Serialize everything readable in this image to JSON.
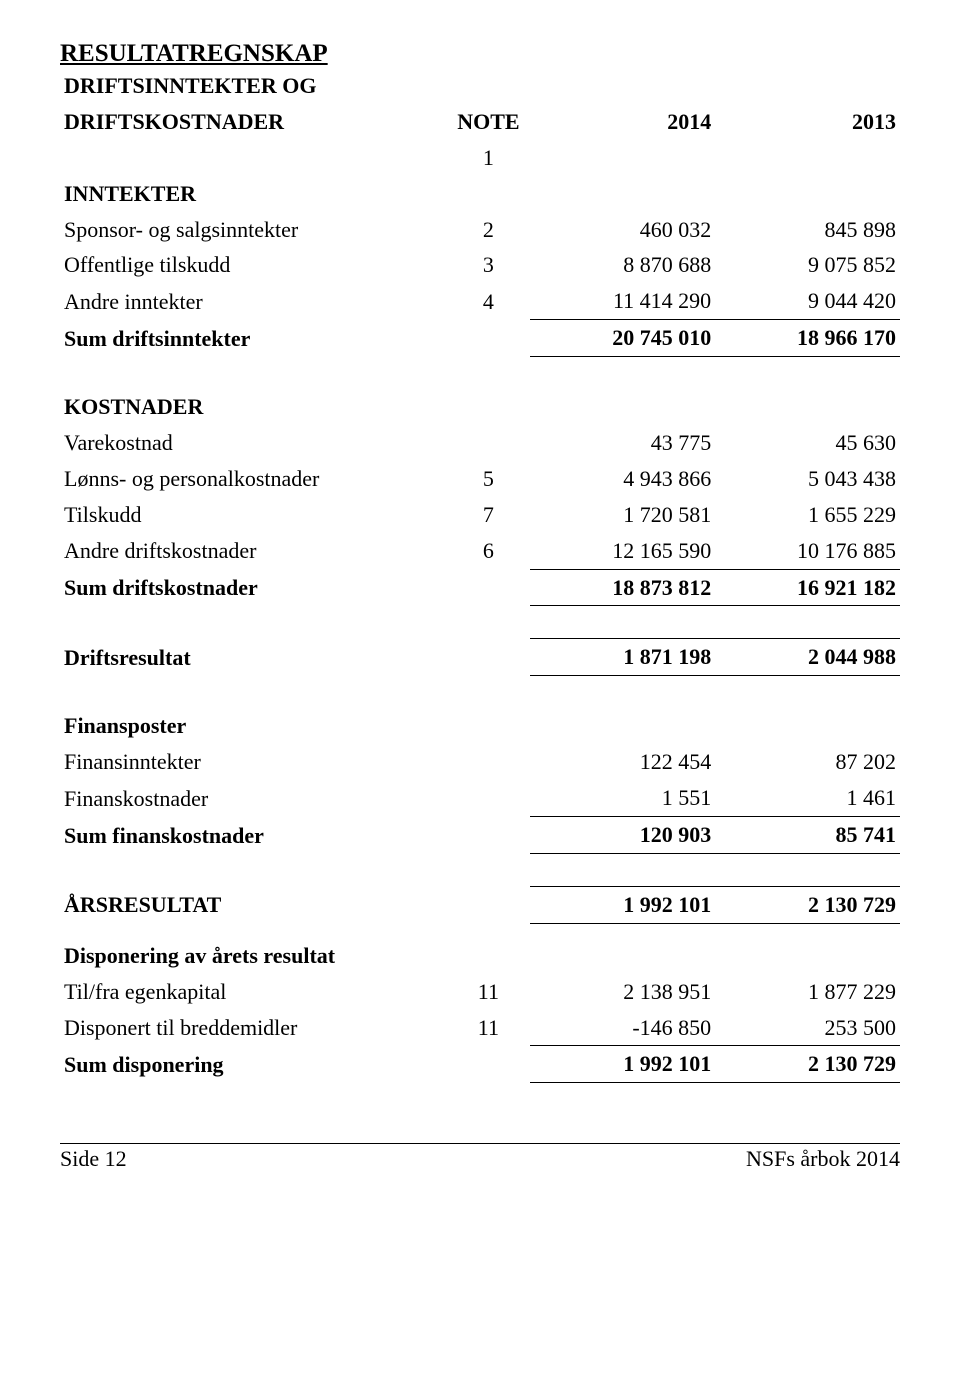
{
  "title": "RESULTATREGNSKAP",
  "subtitle1": "DRIFTSINNTEKTER OG",
  "subtitle2": "DRIFTSKOSTNADER",
  "columns": {
    "note": "NOTE",
    "year1": "2014",
    "year2": "2013"
  },
  "header_note_value": "1",
  "sections": {
    "inntekter": {
      "heading": "INNTEKTER",
      "rows": [
        {
          "label": "Sponsor- og salgsinntekter",
          "note": "2",
          "v1": "460 032",
          "v2": "845 898"
        },
        {
          "label": "Offentlige tilskudd",
          "note": "3",
          "v1": "8 870 688",
          "v2": "9 075 852"
        },
        {
          "label": "Andre inntekter",
          "note": "4",
          "v1": "11 414 290",
          "v2": "9 044 420"
        }
      ],
      "sum": {
        "label": "Sum driftsinntekter",
        "v1": "20 745 010",
        "v2": "18 966 170"
      }
    },
    "kostnader": {
      "heading": "KOSTNADER",
      "rows": [
        {
          "label": "Varekostnad",
          "note": "",
          "v1": "43 775",
          "v2": "45 630"
        },
        {
          "label": "Lønns- og personalkostnader",
          "note": "5",
          "v1": "4 943 866",
          "v2": "5 043 438"
        },
        {
          "label": "Tilskudd",
          "note": "7",
          "v1": "1 720 581",
          "v2": "1 655 229"
        },
        {
          "label": "Andre driftskostnader",
          "note": "6",
          "v1": "12 165 590",
          "v2": "10 176 885"
        }
      ],
      "sum": {
        "label": "Sum driftskostnader",
        "v1": "18 873 812",
        "v2": "16 921 182"
      }
    },
    "driftsresultat": {
      "label": "Driftsresultat",
      "v1": "1 871 198",
      "v2": "2 044 988"
    },
    "finansposter": {
      "heading": "Finansposter",
      "rows": [
        {
          "label": "Finansinntekter",
          "v1": "122 454",
          "v2": "87 202"
        },
        {
          "label": "Finanskostnader",
          "v1": "1 551",
          "v2": "1 461"
        }
      ],
      "sum": {
        "label": "Sum finanskostnader",
        "v1": "120 903",
        "v2": "85 741"
      }
    },
    "arsresultat": {
      "label": "ÅRSRESULTAT",
      "v1": "1 992 101",
      "v2": "2 130 729"
    },
    "disponering": {
      "heading": "Disponering av årets resultat",
      "rows": [
        {
          "label": "Til/fra egenkapital",
          "note": "11",
          "v1": "2 138 951",
          "v2": "1 877 229"
        },
        {
          "label": "Disponert til breddemidler",
          "note": "11",
          "v1": "-146 850",
          "v2": "253 500"
        }
      ],
      "sum": {
        "label": "Sum disponering",
        "v1": "1 992 101",
        "v2": "2 130 729"
      }
    }
  },
  "footer": {
    "left": "Side 12",
    "right": "NSFs årbok 2014"
  },
  "style": {
    "font_family": "Times New Roman",
    "font_size_body": 22,
    "font_size_title": 25,
    "text_color": "#000000",
    "background_color": "#ffffff",
    "rule_color": "#000000"
  }
}
